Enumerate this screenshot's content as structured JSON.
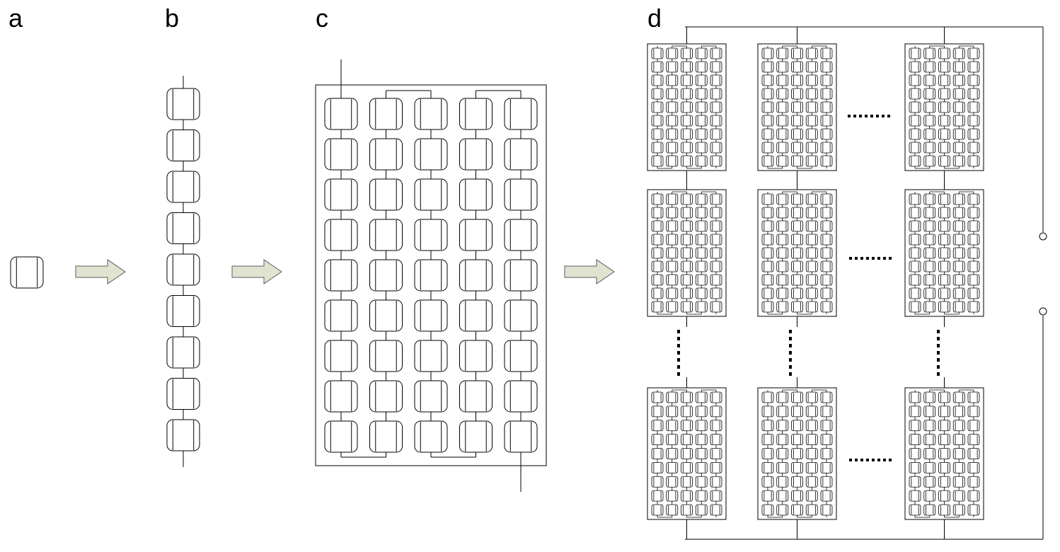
{
  "panels": {
    "a": {
      "label": "a"
    },
    "b": {
      "label": "b"
    },
    "c": {
      "label": "c"
    },
    "d": {
      "label": "d"
    }
  },
  "colors": {
    "stroke": "#000000",
    "arrow_fill": "#dfe3d0",
    "arrow_stroke": "#5c5c5c",
    "background": "#ffffff"
  },
  "structure": {
    "b_cells_in_string": 9,
    "c_columns": 5,
    "c_rows": 9,
    "d_module_rows": 3,
    "d_module_columns": 3
  },
  "icons": [
    "solar-cell-icon",
    "arrow-right-icon",
    "ellipsis-icon",
    "terminal-icon"
  ]
}
